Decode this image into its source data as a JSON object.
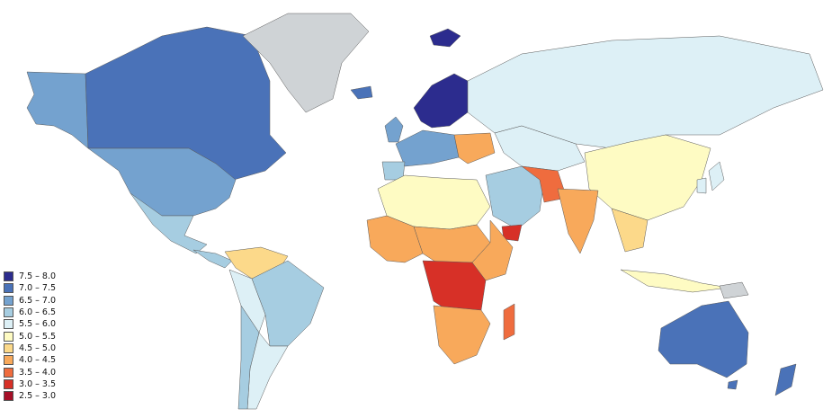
{
  "legend": [
    {
      "label": "7.5 – 8.0",
      "color": "#2c2c8e"
    },
    {
      "label": "7.0 – 7.5",
      "color": "#4a72b8"
    },
    {
      "label": "6.5 – 7.0",
      "color": "#74a2cf"
    },
    {
      "label": "6.0 – 6.5",
      "color": "#a6cde1"
    },
    {
      "label": "5.5 – 6.0",
      "color": "#ddf0f6"
    },
    {
      "label": "5.0 – 5.5",
      "color": "#fefbc3"
    },
    {
      "label": "4.5 – 5.0",
      "color": "#fcd98a"
    },
    {
      "label": "4.0 – 4.5",
      "color": "#f8a95b"
    },
    {
      "label": "3.5 – 4.0",
      "color": "#ef6c3e"
    },
    {
      "label": "3.0 – 3.5",
      "color": "#d73027"
    },
    {
      "label": "2.5 – 3.0",
      "color": "#a50f27"
    }
  ],
  "no_data_color": "#cfd3d6",
  "ocean_color": "#ffffff"
}
